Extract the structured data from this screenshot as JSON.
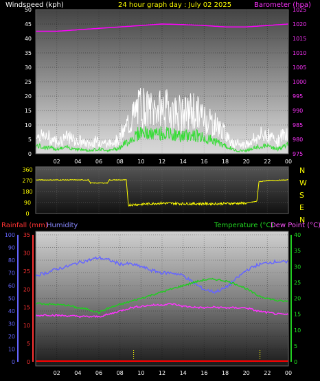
{
  "header": {
    "windspeed_label": "Windspeed (kph)",
    "title": "24 hour graph day : July 02 2025",
    "barometer_label": "Barometer (hpa)"
  },
  "direction_labels": [
    "N",
    "W",
    "S",
    "E",
    "N"
  ],
  "bottom_labels": {
    "rainfall": "Rainfall (mm)",
    "humidity": "Humidity",
    "temperature": "Temperature (°C)",
    "dewpoint": "Dew Point (°C)"
  },
  "colors": {
    "windspeed": "#ffffff",
    "gust_fill": "#cccccc",
    "wind_avg": "#33dd33",
    "barometer": "#ff00ff",
    "wind_dir": "#ffff00",
    "rainfall": "#ff0000",
    "humidity": "#6666ff",
    "temperature": "#22cc22",
    "dewpoint": "#ff33ff",
    "title": "#ffff00"
  },
  "chart_data": [
    {
      "type": "line",
      "xlabel": "",
      "x_ticks": [
        "02",
        "04",
        "06",
        "08",
        "10",
        "12",
        "14",
        "16",
        "18",
        "20",
        "22",
        "00"
      ],
      "y_left": {
        "label": "Windspeed (kph)",
        "ticks": [
          "0",
          "5",
          "10",
          "15",
          "20",
          "25",
          "30",
          "35",
          "40",
          "45",
          "50"
        ],
        "ylim": [
          0,
          50
        ]
      },
      "y_right": {
        "label": "Barometer (hpa)",
        "ticks": [
          "975",
          "980",
          "985",
          "990",
          "995",
          "1000",
          "1005",
          "1010",
          "1015",
          "1020",
          "1025"
        ],
        "ylim": [
          975,
          1025
        ]
      },
      "series": [
        {
          "name": "Windspeed (kph)",
          "x": [
            0,
            1,
            2,
            3,
            4,
            5,
            6,
            7,
            8,
            9,
            10,
            11,
            12,
            13,
            14,
            15,
            16,
            17,
            18,
            19,
            20,
            21,
            22,
            23,
            24
          ],
          "values": [
            5,
            4,
            3,
            4,
            3,
            2,
            3,
            2,
            4,
            9,
            14,
            12,
            13,
            12,
            11,
            12,
            10,
            8,
            5,
            2,
            2,
            4,
            5,
            3,
            6
          ]
        },
        {
          "name": "Barometer (hpa)",
          "x": [
            0,
            2,
            4,
            6,
            8,
            10,
            12,
            14,
            16,
            18,
            20,
            22,
            24
          ],
          "values": [
            1017.5,
            1017.5,
            1018,
            1018.5,
            1019,
            1019.5,
            1020,
            1019.8,
            1019.5,
            1019,
            1019,
            1019.5,
            1020
          ]
        }
      ]
    },
    {
      "type": "line",
      "y_left": {
        "ticks": [
          "360",
          "270",
          "180",
          "90",
          "0"
        ],
        "ylim": [
          0,
          360
        ]
      },
      "series": [
        {
          "name": "Wind direction",
          "x": [
            0,
            5,
            5.2,
            6.8,
            7,
            8.6,
            8.8,
            12,
            14,
            17,
            20,
            21,
            21.2,
            22,
            24
          ],
          "values": [
            275,
            275,
            250,
            250,
            275,
            275,
            70,
            85,
            80,
            80,
            85,
            100,
            260,
            270,
            275
          ]
        }
      ]
    },
    {
      "type": "line",
      "y_left_humidity": {
        "ticks": [
          "0",
          "10",
          "20",
          "30",
          "40",
          "50",
          "60",
          "70",
          "80",
          "90",
          "100"
        ],
        "ylim": [
          0,
          100
        ]
      },
      "y_left_rain": {
        "ticks": [
          "0",
          "5",
          "10",
          "15",
          "20",
          "25",
          "30",
          "35"
        ],
        "ylim": [
          0,
          35
        ]
      },
      "y_right": {
        "ticks": [
          "0",
          "5",
          "10",
          "15",
          "20",
          "25",
          "30",
          "35",
          "40"
        ],
        "ylim": [
          0,
          40
        ]
      },
      "x_ticks": [
        "02",
        "04",
        "06",
        "08",
        "10",
        "12",
        "14",
        "16",
        "18",
        "20",
        "22",
        "00"
      ],
      "series": [
        {
          "name": "Humidity",
          "x": [
            0,
            1,
            2,
            3,
            4,
            5,
            6,
            7,
            8,
            9,
            10,
            11,
            12,
            13,
            14,
            15,
            16,
            17,
            18,
            19,
            20,
            21,
            22,
            23,
            24
          ],
          "values": [
            68,
            70,
            73,
            75,
            78,
            80,
            82,
            80,
            77,
            77,
            75,
            72,
            70,
            70,
            68,
            62,
            57,
            55,
            58,
            65,
            72,
            76,
            78,
            79,
            78
          ]
        },
        {
          "name": "Rainfall (mm)",
          "x": [
            0,
            24
          ],
          "values": [
            0,
            0
          ]
        },
        {
          "name": "Temperature (°C)",
          "x": [
            0,
            1,
            2,
            3,
            4,
            5,
            6,
            7,
            8,
            9,
            10,
            11,
            12,
            13,
            14,
            15,
            16,
            17,
            18,
            19,
            20,
            21,
            22,
            23,
            24
          ],
          "values": [
            18.5,
            18.2,
            18,
            17.8,
            17,
            16.5,
            15.5,
            17,
            18,
            19,
            20,
            21,
            22,
            23,
            24,
            25,
            25.8,
            26,
            25.5,
            24.5,
            23,
            21,
            20,
            19.2,
            19
          ]
        },
        {
          "name": "Dew Point (°C)",
          "x": [
            0,
            1,
            2,
            3,
            4,
            5,
            6,
            7,
            8,
            9,
            10,
            11,
            12,
            13,
            14,
            15,
            16,
            17,
            18,
            19,
            20,
            21,
            22,
            23,
            24
          ],
          "values": [
            14.5,
            14.8,
            14.6,
            14.5,
            14.3,
            14.2,
            14.2,
            15,
            16,
            17,
            17.5,
            17.8,
            18,
            18.2,
            17.5,
            17.2,
            17,
            17.2,
            17,
            17,
            17,
            16,
            15.5,
            15,
            14.8
          ]
        }
      ]
    }
  ]
}
